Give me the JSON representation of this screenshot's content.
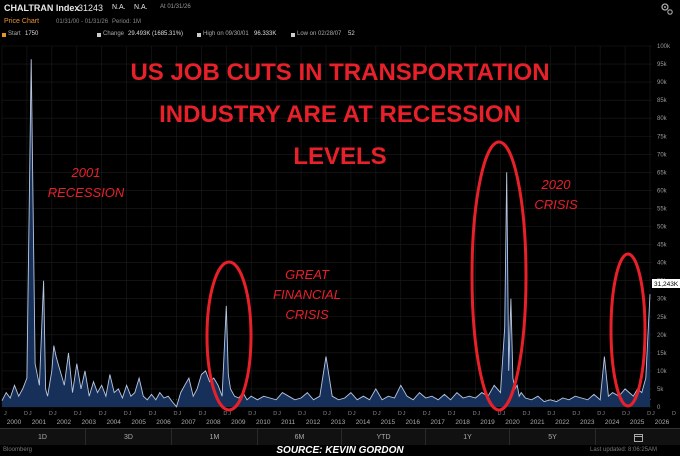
{
  "header": {
    "ticker": "CHALTRAN Index",
    "last": "31243",
    "na1": "N.A.",
    "na2": "N.A.",
    "as_of": "At 01/31/26"
  },
  "subheader": {
    "title": "Price Chart",
    "range": "01/31/00 - 01/31/26",
    "period": "Period: 1M"
  },
  "stats": {
    "start_label": "Start",
    "start_value": "1750",
    "change_label": "Change",
    "change_value": "29.493K (1685.31%)",
    "high_label": "High on 09/30/01",
    "high_value": "96.333K",
    "low_label": "Low on 02/28/07",
    "low_value": "52"
  },
  "timeframes": [
    "1D",
    "3D",
    "1M",
    "6M",
    "YTD",
    "1Y",
    "5Y"
  ],
  "footer": {
    "brand": "Bloomberg",
    "source": "SOURCE: KEVIN GORDON",
    "updated": "Last updated: 8:06:25AM"
  },
  "colors": {
    "annotation": "#e8202a",
    "line": "#b8c7e0",
    "fill": "#17305a",
    "accent": "#e8922e"
  },
  "chart_data": {
    "type": "area",
    "title": "US JOB CUTS IN TRANSPORTATION INDUSTRY ARE AT RECESSION LEVELS",
    "title_lines": [
      "US JOB CUTS IN TRANSPORTATION",
      "INDUSTRY ARE AT RECESSION",
      "LEVELS"
    ],
    "xlim": [
      2000.0,
      2026.08
    ],
    "ylim": [
      0,
      100000
    ],
    "y_ticks": [
      0,
      5000,
      10000,
      15000,
      20000,
      25000,
      30000,
      35000,
      40000,
      45000,
      50000,
      55000,
      60000,
      65000,
      70000,
      75000,
      80000,
      85000,
      90000,
      95000,
      100000
    ],
    "y_tick_labels": [
      "0",
      "5k",
      "10k",
      "15k",
      "20k",
      "25k",
      "30k",
      "35k",
      "40k",
      "45k",
      "50k",
      "55k",
      "60k",
      "65k",
      "70k",
      "75k",
      "80k",
      "85k",
      "90k",
      "95k",
      "100k"
    ],
    "x_year_labels": [
      "2000",
      "2001",
      "2002",
      "2003",
      "2004",
      "2005",
      "2006",
      "2007",
      "2008",
      "2009",
      "2010",
      "2011",
      "2012",
      "2013",
      "2014",
      "2015",
      "2016",
      "2017",
      "2018",
      "2019",
      "2020",
      "2021",
      "2022",
      "2023",
      "2024",
      "2025",
      "2026"
    ],
    "x_month_markers": [
      "J",
      "D"
    ],
    "last_value_label": "31,243K",
    "last_value": 31243,
    "grid": true,
    "x": [
      2000.0,
      2000.17,
      2000.33,
      2000.5,
      2000.67,
      2000.83,
      2001.0,
      2001.17,
      2001.33,
      2001.5,
      2001.67,
      2001.75,
      2001.83,
      2002.0,
      2002.08,
      2002.17,
      2002.25,
      2002.42,
      2002.5,
      2002.67,
      2002.83,
      2003.0,
      2003.17,
      2003.33,
      2003.5,
      2003.67,
      2003.83,
      2004.0,
      2004.17,
      2004.33,
      2004.5,
      2004.67,
      2004.83,
      2005.0,
      2005.17,
      2005.33,
      2005.5,
      2005.67,
      2005.83,
      2006.0,
      2006.17,
      2006.33,
      2006.5,
      2006.67,
      2006.83,
      2007.0,
      2007.17,
      2007.33,
      2007.5,
      2007.67,
      2007.83,
      2008.0,
      2008.17,
      2008.33,
      2008.5,
      2008.67,
      2008.83,
      2009.0,
      2009.08,
      2009.17,
      2009.33,
      2009.5,
      2009.67,
      2009.83,
      2010.0,
      2010.25,
      2010.5,
      2010.75,
      2011.0,
      2011.25,
      2011.5,
      2011.75,
      2012.0,
      2012.25,
      2012.5,
      2012.75,
      2013.0,
      2013.25,
      2013.5,
      2013.75,
      2014.0,
      2014.25,
      2014.5,
      2014.75,
      2015.0,
      2015.25,
      2015.5,
      2015.75,
      2016.0,
      2016.25,
      2016.5,
      2016.75,
      2017.0,
      2017.25,
      2017.5,
      2017.75,
      2018.0,
      2018.25,
      2018.5,
      2018.75,
      2019.0,
      2019.25,
      2019.5,
      2019.75,
      2020.0,
      2020.17,
      2020.25,
      2020.33,
      2020.42,
      2020.5,
      2020.58,
      2020.67,
      2020.75,
      2020.83,
      2021.0,
      2021.25,
      2021.5,
      2021.75,
      2022.0,
      2022.25,
      2022.5,
      2022.75,
      2023.0,
      2023.25,
      2023.5,
      2023.75,
      2024.0,
      2024.17,
      2024.33,
      2024.5,
      2024.75,
      2025.0,
      2025.17,
      2025.33,
      2025.5,
      2025.67,
      2025.75,
      2025.83,
      2026.0
    ],
    "y": [
      1750,
      4000,
      2500,
      6000,
      3000,
      5000,
      8000,
      96333,
      12000,
      6000,
      35000,
      5000,
      3000,
      10000,
      17000,
      14000,
      12000,
      8000,
      6000,
      15000,
      4000,
      12000,
      5000,
      10000,
      3000,
      7000,
      4000,
      6000,
      3000,
      9000,
      4000,
      5000,
      2500,
      6000,
      3000,
      4000,
      8000,
      3000,
      2000,
      3500,
      2000,
      4000,
      2500,
      3000,
      1500,
      52,
      4000,
      6000,
      8000,
      3000,
      5000,
      9000,
      10000,
      7000,
      8000,
      6000,
      3000,
      28000,
      9000,
      5000,
      3000,
      2500,
      4000,
      2000,
      3000,
      2000,
      3000,
      2500,
      2000,
      4000,
      3000,
      2000,
      2500,
      4000,
      2000,
      3000,
      14000,
      3000,
      2000,
      2500,
      4000,
      2000,
      3000,
      2000,
      5000,
      2000,
      3000,
      2500,
      6000,
      3000,
      2000,
      4000,
      2500,
      3000,
      2000,
      3500,
      2000,
      4000,
      2500,
      3000,
      2500,
      4000,
      3000,
      6000,
      4000,
      22000,
      65000,
      10000,
      30000,
      8000,
      5000,
      6000,
      3000,
      4000,
      2500,
      2000,
      3000,
      1500,
      2000,
      1500,
      2500,
      2000,
      3000,
      2500,
      2000,
      3500,
      2000,
      14000,
      3000,
      4000,
      3000,
      5000,
      4000,
      3000,
      5000,
      4000,
      6000,
      8000,
      31243
    ]
  },
  "annotations": [
    {
      "id": "2001-recession",
      "lines": [
        "2001",
        "RECESSION"
      ]
    },
    {
      "id": "great-financial-crisis",
      "lines": [
        "GREAT",
        "FINANCIAL",
        "CRISIS"
      ]
    },
    {
      "id": "2020-crisis",
      "lines": [
        "2020",
        "CRISIS"
      ]
    }
  ]
}
